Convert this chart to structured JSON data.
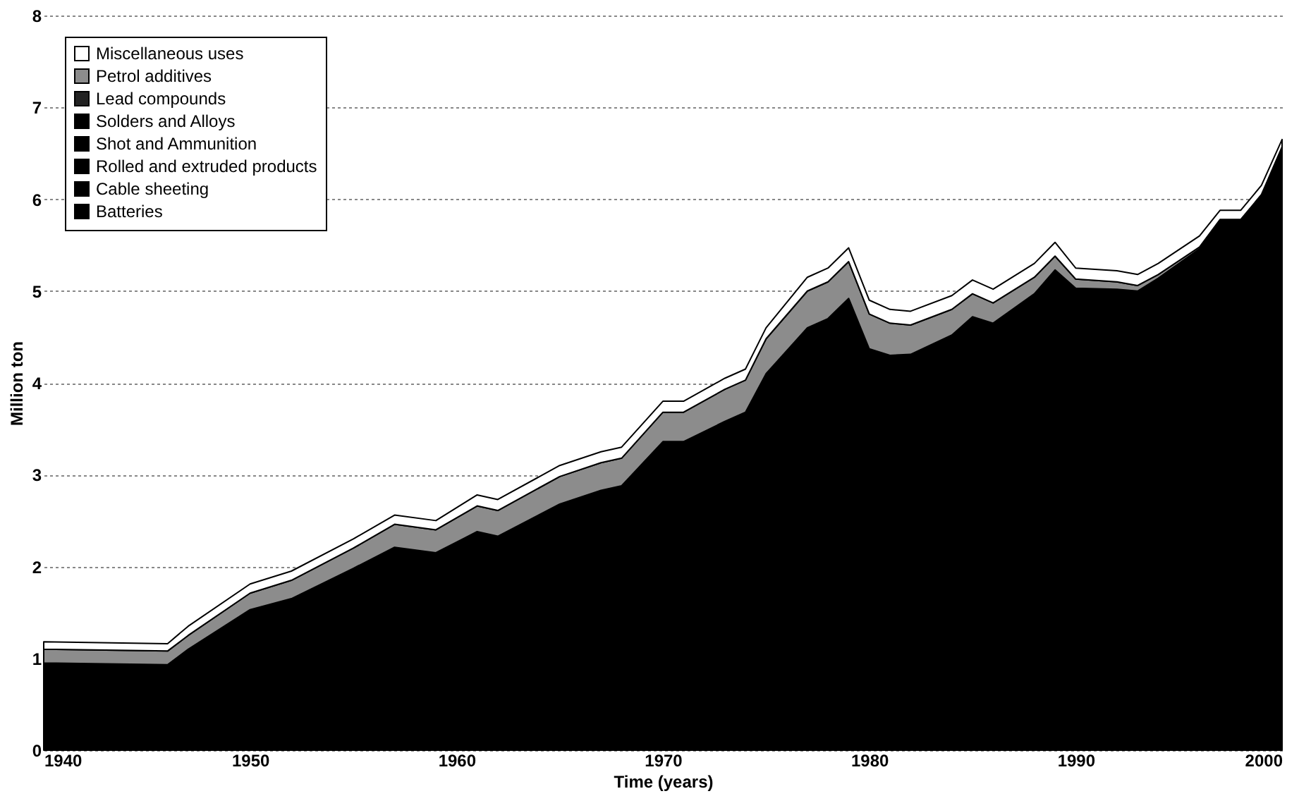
{
  "chart_data": {
    "type": "area",
    "stacked": true,
    "xlabel": "Time (years)",
    "ylabel": "Million ton",
    "x": [
      1940,
      1946,
      1947,
      1950,
      1952,
      1955,
      1957,
      1959,
      1961,
      1962,
      1965,
      1967,
      1968,
      1970,
      1971,
      1973,
      1974,
      1975,
      1977,
      1978,
      1979,
      1980,
      1981,
      1982,
      1984,
      1985,
      1986,
      1988,
      1989,
      1990,
      1992,
      1993,
      1994,
      1996,
      1997,
      1998,
      1999,
      2000
    ],
    "xlim": [
      1940,
      2000
    ],
    "xticks": [
      1940,
      1950,
      1960,
      1970,
      1980,
      1990,
      2000
    ],
    "ylim": [
      0,
      8
    ],
    "yticks": [
      0,
      1,
      2,
      3,
      4,
      5,
      6,
      7,
      8
    ],
    "grid": "y",
    "legend": "top left",
    "series": [
      {
        "color": "#000000",
        "values": [
          0.95,
          0.93,
          1.1,
          1.53,
          1.65,
          1.98,
          2.21,
          2.15,
          2.38,
          2.33,
          2.68,
          2.83,
          2.88,
          3.36,
          3.36,
          3.58,
          3.68,
          4.1,
          4.6,
          4.7,
          4.92,
          4.37,
          4.3,
          4.31,
          4.52,
          4.72,
          4.65,
          4.97,
          5.23,
          5.03,
          5.02,
          5.0,
          5.14,
          5.46,
          5.78,
          5.78,
          6.05,
          6.57
        ]
      },
      {
        "name": "Batteries",
        "color": "#000000",
        "values": [
          null,
          null,
          null,
          null,
          null,
          null,
          null,
          null,
          null,
          null,
          null,
          null,
          null,
          null,
          null,
          null,
          null,
          null,
          null,
          null,
          null,
          null,
          null,
          null,
          null,
          null,
          null,
          null,
          null,
          null,
          null,
          null,
          null,
          null,
          null,
          null,
          null,
          null
        ]
      },
      {
        "name": "Cable sheeting",
        "color": "#000000",
        "values": [
          null,
          null,
          null,
          null,
          null,
          null,
          null,
          null,
          null,
          null,
          null,
          null,
          null,
          null,
          null,
          null,
          null,
          null,
          null,
          null,
          null,
          null,
          null,
          null,
          null,
          null,
          null,
          null,
          null,
          null,
          null,
          null,
          null,
          null,
          null,
          null,
          null,
          null
        ]
      },
      {
        "name": "Rolled and extruded products",
        "color": "#000000",
        "values": [
          null,
          null,
          null,
          null,
          null,
          null,
          null,
          null,
          null,
          null,
          null,
          null,
          null,
          null,
          null,
          null,
          null,
          null,
          null,
          null,
          null,
          null,
          null,
          null,
          null,
          null,
          null,
          null,
          null,
          null,
          null,
          null,
          null,
          null,
          null,
          null,
          null,
          null
        ]
      },
      {
        "name": "Shot and Ammunition",
        "color": "#000000",
        "values": [
          null,
          null,
          null,
          null,
          null,
          null,
          null,
          null,
          null,
          null,
          null,
          null,
          null,
          null,
          null,
          null,
          null,
          null,
          null,
          null,
          null,
          null,
          null,
          null,
          null,
          null,
          null,
          null,
          null,
          null,
          null,
          null,
          null,
          null,
          null,
          null,
          null,
          null
        ]
      },
      {
        "name": "Solders and Alloys",
        "color": "#000000",
        "values": [
          null,
          null,
          null,
          null,
          null,
          null,
          null,
          null,
          null,
          null,
          null,
          null,
          null,
          null,
          null,
          null,
          null,
          null,
          null,
          null,
          null,
          null,
          null,
          null,
          null,
          null,
          null,
          null,
          null,
          null,
          null,
          null,
          null,
          null,
          null,
          null,
          null,
          null
        ]
      },
      {
        "name": "Lead compounds",
        "color": "#222222",
        "values": [
          null,
          null,
          null,
          null,
          null,
          null,
          null,
          null,
          null,
          null,
          null,
          null,
          null,
          null,
          null,
          null,
          null,
          null,
          null,
          null,
          null,
          null,
          null,
          null,
          null,
          null,
          null,
          null,
          null,
          null,
          null,
          null,
          null,
          null,
          null,
          null,
          null,
          null
        ]
      },
      {
        "name": "Petrol additives",
        "color": "#8c8c8c",
        "values": [
          0.15,
          0.15,
          0.15,
          0.18,
          0.2,
          0.22,
          0.25,
          0.25,
          0.28,
          0.28,
          0.3,
          0.3,
          0.3,
          0.32,
          0.32,
          0.35,
          0.35,
          0.38,
          0.4,
          0.4,
          0.4,
          0.38,
          0.35,
          0.32,
          0.28,
          0.25,
          0.22,
          0.18,
          0.15,
          0.1,
          0.08,
          0.06,
          0.04,
          0.02,
          0,
          0,
          0,
          0
        ]
      },
      {
        "name": "Miscellaneous uses",
        "color": "#ffffff",
        "values": [
          0.08,
          0.08,
          0.1,
          0.1,
          0.1,
          0.1,
          0.1,
          0.1,
          0.12,
          0.12,
          0.12,
          0.12,
          0.12,
          0.12,
          0.12,
          0.12,
          0.12,
          0.12,
          0.15,
          0.15,
          0.15,
          0.15,
          0.15,
          0.15,
          0.15,
          0.15,
          0.15,
          0.15,
          0.15,
          0.12,
          0.12,
          0.12,
          0.12,
          0.12,
          0.1,
          0.1,
          0.1,
          0.08
        ]
      }
    ]
  }
}
